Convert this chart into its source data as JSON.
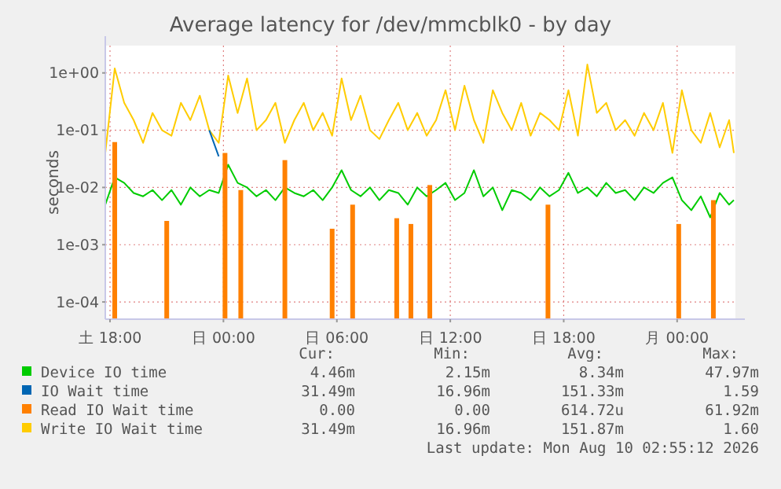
{
  "chart_data": {
    "type": "line",
    "title": "Average latency for /dev/mmcblk0 - by day",
    "ylabel": "seconds",
    "log": "y",
    "grid": true,
    "legend": "bottom",
    "marker": "none",
    "line_style": "solid",
    "xlim": [
      "2026-08-08T17:45",
      "2026-08-10T03:05"
    ],
    "xticks": [
      {
        "value": "2026-08-08T18:00",
        "label": "土 18:00"
      },
      {
        "value": "2026-08-09T00:00",
        "label": "日 00:00"
      },
      {
        "value": "2026-08-09T06:00",
        "label": "日 06:00"
      },
      {
        "value": "2026-08-09T12:00",
        "label": "日 12:00"
      },
      {
        "value": "2026-08-09T18:00",
        "label": "日 18:00"
      },
      {
        "value": "2026-08-10T00:00",
        "label": "月 00:00"
      }
    ],
    "ylim": [
      5e-05,
      3
    ],
    "yticks": [
      {
        "value": 0.0001,
        "label": "1e-04"
      },
      {
        "value": 0.001,
        "label": "1e-03"
      },
      {
        "value": 0.01,
        "label": "1e-02"
      },
      {
        "value": 0.1,
        "label": "1e-01"
      },
      {
        "value": 1,
        "label": "1e+00"
      }
    ],
    "x": [
      "2026-08-08T17:45",
      "2026-08-08T18:15",
      "2026-08-08T18:45",
      "2026-08-08T19:15",
      "2026-08-08T19:45",
      "2026-08-08T20:15",
      "2026-08-08T20:45",
      "2026-08-08T21:15",
      "2026-08-08T21:45",
      "2026-08-08T22:15",
      "2026-08-08T22:45",
      "2026-08-08T23:15",
      "2026-08-08T23:45",
      "2026-08-09T00:15",
      "2026-08-09T00:45",
      "2026-08-09T01:15",
      "2026-08-09T01:45",
      "2026-08-09T02:15",
      "2026-08-09T02:45",
      "2026-08-09T03:15",
      "2026-08-09T03:45",
      "2026-08-09T04:15",
      "2026-08-09T04:45",
      "2026-08-09T05:15",
      "2026-08-09T05:45",
      "2026-08-09T06:15",
      "2026-08-09T06:45",
      "2026-08-09T07:15",
      "2026-08-09T07:45",
      "2026-08-09T08:15",
      "2026-08-09T08:45",
      "2026-08-09T09:15",
      "2026-08-09T09:45",
      "2026-08-09T10:15",
      "2026-08-09T10:45",
      "2026-08-09T11:15",
      "2026-08-09T11:45",
      "2026-08-09T12:15",
      "2026-08-09T12:45",
      "2026-08-09T13:15",
      "2026-08-09T13:45",
      "2026-08-09T14:15",
      "2026-08-09T14:45",
      "2026-08-09T15:15",
      "2026-08-09T15:45",
      "2026-08-09T16:15",
      "2026-08-09T16:45",
      "2026-08-09T17:15",
      "2026-08-09T17:45",
      "2026-08-09T18:15",
      "2026-08-09T18:45",
      "2026-08-09T19:15",
      "2026-08-09T19:45",
      "2026-08-09T20:15",
      "2026-08-09T20:45",
      "2026-08-09T21:15",
      "2026-08-09T21:45",
      "2026-08-09T22:15",
      "2026-08-09T22:45",
      "2026-08-09T23:15",
      "2026-08-09T23:45",
      "2026-08-10T00:15",
      "2026-08-10T00:45",
      "2026-08-10T01:15",
      "2026-08-10T01:45",
      "2026-08-10T02:15",
      "2026-08-10T02:45",
      "2026-08-10T03:00"
    ],
    "series": [
      {
        "name": "Device IO time",
        "color": "#00cc00",
        "values": [
          0.005,
          0.015,
          0.012,
          0.008,
          0.007,
          0.009,
          0.006,
          0.009,
          0.005,
          0.01,
          0.007,
          0.009,
          0.008,
          0.025,
          0.012,
          0.01,
          0.007,
          0.009,
          0.006,
          0.01,
          0.008,
          0.007,
          0.009,
          0.006,
          0.01,
          0.02,
          0.009,
          0.007,
          0.01,
          0.006,
          0.009,
          0.008,
          0.005,
          0.01,
          0.007,
          0.009,
          0.012,
          0.006,
          0.008,
          0.02,
          0.007,
          0.01,
          0.004,
          0.009,
          0.008,
          0.006,
          0.01,
          0.007,
          0.009,
          0.018,
          0.008,
          0.01,
          0.007,
          0.012,
          0.008,
          0.009,
          0.006,
          0.01,
          0.008,
          0.012,
          0.015,
          0.006,
          0.004,
          0.007,
          0.003,
          0.008,
          0.005,
          0.006
        ]
      },
      {
        "name": "IO Wait time",
        "color": "#0066b3",
        "values": [
          null,
          null,
          null,
          null,
          null,
          null,
          null,
          null,
          null,
          null,
          null,
          0.1,
          0.035,
          null,
          null,
          null,
          null,
          null,
          null,
          null,
          null,
          null,
          null,
          null,
          null,
          null,
          null,
          null,
          null,
          null,
          null,
          null,
          null,
          null,
          null,
          null,
          null,
          null,
          null,
          null,
          null,
          null,
          null,
          null,
          null,
          null,
          null,
          null,
          null,
          null,
          null,
          null,
          null,
          null,
          null,
          null,
          null,
          null,
          null,
          null,
          null,
          null,
          null,
          null,
          null,
          null,
          null,
          null
        ]
      },
      {
        "name": "Read IO Wait time",
        "type": "bar",
        "color": "#ff8000",
        "x": [
          "2026-08-08T18:15",
          "2026-08-08T21:00",
          "2026-08-09T00:05",
          "2026-08-09T00:55",
          "2026-08-09T03:15",
          "2026-08-09T05:45",
          "2026-08-09T06:50",
          "2026-08-09T09:10",
          "2026-08-09T09:55",
          "2026-08-09T10:55",
          "2026-08-09T17:10",
          "2026-08-10T00:05",
          "2026-08-10T01:55"
        ],
        "values": [
          0.062,
          0.0026,
          0.04,
          0.009,
          0.03,
          0.0019,
          0.005,
          0.0029,
          0.0023,
          0.011,
          0.005,
          0.0023,
          0.006
        ]
      },
      {
        "name": "Write IO Wait time",
        "color": "#ffcc00",
        "values": [
          0.04,
          1.2,
          0.3,
          0.15,
          0.06,
          0.2,
          0.1,
          0.08,
          0.3,
          0.15,
          0.4,
          0.1,
          0.06,
          0.9,
          0.2,
          0.8,
          0.1,
          0.15,
          0.3,
          0.06,
          0.15,
          0.3,
          0.1,
          0.2,
          0.08,
          0.8,
          0.15,
          0.4,
          0.1,
          0.07,
          0.15,
          0.3,
          0.1,
          0.2,
          0.08,
          0.15,
          0.5,
          0.1,
          0.6,
          0.15,
          0.06,
          0.5,
          0.2,
          0.1,
          0.3,
          0.08,
          0.2,
          0.15,
          0.1,
          0.5,
          0.08,
          1.4,
          0.2,
          0.3,
          0.1,
          0.15,
          0.08,
          0.2,
          0.1,
          0.3,
          0.04,
          0.5,
          0.1,
          0.06,
          0.2,
          0.05,
          0.15,
          0.04
        ]
      }
    ],
    "annotations": [
      "Cur:",
      "Min:",
      "Avg:",
      "Max:",
      "4.46m",
      "2.15m",
      "8.34m",
      "47.97m",
      "31.49m",
      "16.96m",
      "151.33m",
      "1.59",
      "0.00",
      "0.00",
      "614.72u",
      "61.92m",
      "31.49m",
      "16.96m",
      "151.87m",
      "1.60",
      "Last update: Mon Aug 10 02:55:12 2026"
    ]
  }
}
